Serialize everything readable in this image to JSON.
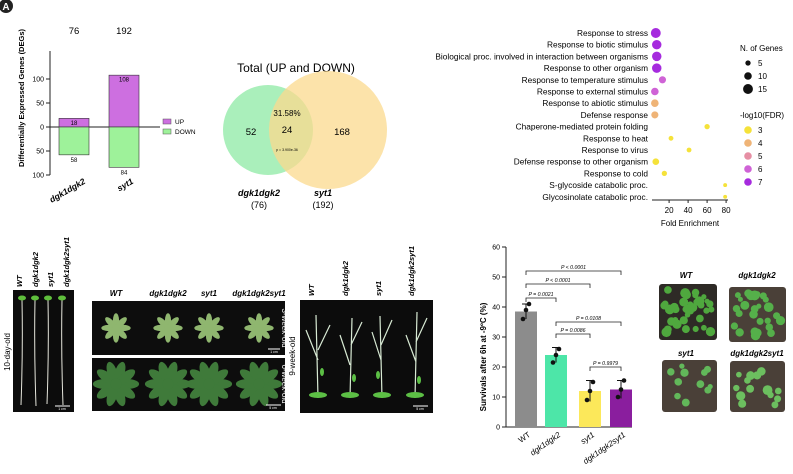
{
  "panel_letter": "A",
  "deg_bar": {
    "ylabel": "Differentially Expressed Genes (DEGs)",
    "totals": [
      "76",
      "192"
    ],
    "up_label": "UP",
    "down_label": "DOWN",
    "yticks": [
      "100",
      "50",
      "0",
      "50",
      "100"
    ],
    "genotypes": [
      "dgk1dgk2",
      "syt1"
    ],
    "up_counts": [
      "18",
      "108"
    ],
    "down_counts": [
      "58",
      "84"
    ]
  },
  "venn": {
    "title": "Total (UP and DOWN)",
    "left_only": "52",
    "overlap": "24",
    "overlap_pct": "31.58%",
    "pvalue": "p = 3.900e-36",
    "right_only": "168",
    "left_name": "dgk1dgk2",
    "left_total": "(76)",
    "right_name": "syt1",
    "right_total": "(192)"
  },
  "go_plot": {
    "xlabel": "Fold Enrichment",
    "xticks": [
      "20",
      "40",
      "60",
      "80"
    ],
    "size_legend_title": "N. of Genes",
    "size_legend_values": [
      "5",
      "10",
      "15"
    ],
    "color_legend_title": "-log10(FDR)",
    "color_legend_values": [
      "3",
      "4",
      "5",
      "6",
      "7"
    ],
    "color_scale": [
      "#f5e23a",
      "#efb477",
      "#e68fa4",
      "#cf63d6",
      "#a62bde"
    ]
  },
  "chart_data": [
    {
      "type": "bar",
      "title": "",
      "xlabel": "",
      "ylabel": "Differentially Expressed Genes (DEGs)",
      "categories": [
        "dgk1dgk2",
        "syt1"
      ],
      "series": [
        {
          "name": "UP",
          "values": [
            18,
            108
          ]
        },
        {
          "name": "DOWN",
          "values": [
            58,
            84
          ]
        }
      ],
      "ylim": [
        -100,
        100
      ],
      "colors": {
        "UP": "#cd6fe0",
        "DOWN": "#9ef29a"
      }
    },
    {
      "type": "scatter",
      "title": "",
      "xlabel": "Fold Enrichment",
      "ylabel": "",
      "xlim": [
        2,
        82
      ],
      "categories": [
        "Response to stress",
        "Response to biotic stimulus",
        "Biological proc. involved in interaction between organisms",
        "Response to other organism",
        "Response to temperature stimulus",
        "Response to external stimulus",
        "Response to abiotic stimulus",
        "Defense response",
        "Chaperone-mediated protein folding",
        "Response to heat",
        "Response to virus",
        "Defense response to other organism",
        "Response to cold",
        "S-glycoside catabolic proc.",
        "Glycosinolate catabolic proc."
      ],
      "fold_enrichment": [
        6,
        7,
        7,
        7,
        13,
        5,
        5,
        5,
        60,
        22,
        41,
        6,
        15,
        79,
        79
      ],
      "n_genes": [
        15,
        14,
        14,
        14,
        9,
        10,
        10,
        9,
        5,
        4,
        4,
        8,
        5,
        2,
        2
      ],
      "log10_fdr": [
        7,
        6.8,
        6.8,
        6.8,
        6,
        5.5,
        4,
        4,
        3.3,
        3,
        3,
        3,
        3,
        3,
        3
      ]
    },
    {
      "type": "bar",
      "title": "",
      "xlabel": "",
      "ylabel": "Survivals after 6h at -9ºC (%)",
      "categories": [
        "WT",
        "dgk1dgk2",
        "syt1",
        "dgk1dgk2syt1"
      ],
      "values": [
        38.5,
        24,
        12,
        12.5
      ],
      "errors": [
        2.5,
        2.5,
        3.5,
        3
      ],
      "points": [
        [
          36,
          39,
          41
        ],
        [
          21.5,
          24,
          26
        ],
        [
          9,
          12,
          15
        ],
        [
          10,
          12.5,
          15.5
        ]
      ],
      "ylim": [
        0,
        60
      ],
      "yticks": [
        "0",
        "10",
        "20",
        "30",
        "40",
        "50",
        "60"
      ],
      "colors": [
        "#8c8c8c",
        "#4de6a8",
        "#fce85a",
        "#8a1e9e"
      ],
      "comparisons": [
        {
          "label": "P < 0.0001"
        },
        {
          "label": "P < 0.0001"
        },
        {
          "label": "P = 0.0021"
        },
        {
          "label": "P = 0.0108"
        },
        {
          "label": "P = 0.0086"
        },
        {
          "label": "P = 0.9979"
        }
      ]
    }
  ],
  "seedlings": {
    "genotypes": [
      "WT",
      "dgk1dgk2",
      "syt1",
      "dgk1dgk2syt1"
    ],
    "age": "10-day-old",
    "scale": "1 cm"
  },
  "rosettes": {
    "genotypes": [
      "WT",
      "dgk1dgk2",
      "syt1",
      "dgk1dgk2syt1"
    ],
    "age_top": "3-week-old",
    "age_bottom": "6-week-old",
    "scale_top": "1 cm",
    "scale_bottom": "5 cm"
  },
  "mature": {
    "genotypes": [
      "WT",
      "dgk1dgk2",
      "syt1",
      "dgk1dgk2syt1"
    ],
    "age": "9-week-old",
    "scale": "5 cm"
  },
  "pots": {
    "labels": [
      "WT",
      "dgk1dgk2",
      "syt1",
      "dgk1dgk2syt1"
    ]
  }
}
